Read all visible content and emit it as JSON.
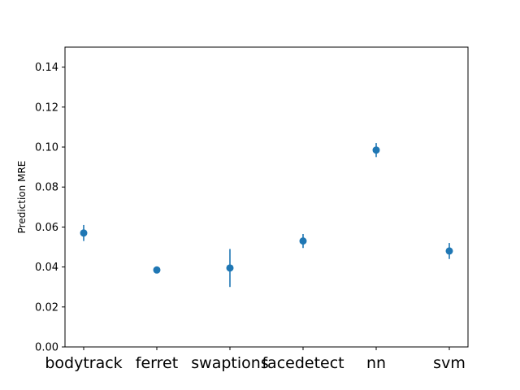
{
  "chart_data": {
    "type": "scatter",
    "title": "",
    "xlabel": "",
    "ylabel": "Prediction MRE",
    "categories": [
      "bodytrack",
      "ferret",
      "swaptions",
      "facedetect",
      "nn",
      "svm"
    ],
    "values": [
      0.057,
      0.0385,
      0.0395,
      0.053,
      0.0985,
      0.048
    ],
    "errors": [
      0.004,
      0.001,
      0.0095,
      0.0035,
      0.0035,
      0.004
    ],
    "ylim": [
      0.0,
      0.15
    ],
    "yticks": [
      "0.00",
      "0.02",
      "0.04",
      "0.06",
      "0.08",
      "0.10",
      "0.12",
      "0.14"
    ],
    "grid": false,
    "color": "#1f77b4"
  }
}
